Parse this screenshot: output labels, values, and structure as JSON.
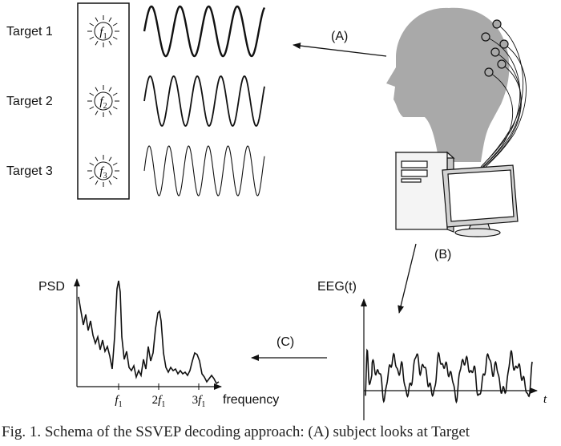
{
  "targets": [
    {
      "label": "Target 1",
      "freq_symbol": "f",
      "freq_sub": "1",
      "cycles": 4.2
    },
    {
      "label": "Target 2",
      "freq_symbol": "f",
      "freq_sub": "2",
      "cycles": 5.1
    },
    {
      "label": "Target 3",
      "freq_symbol": "f",
      "freq_sub": "3",
      "cycles": 6.1
    }
  ],
  "arrows": {
    "a": "(A)",
    "b": "(B)",
    "c": "(C)"
  },
  "psd_plot": {
    "ylabel": "PSD",
    "xlabel": "frequency",
    "ticks": [
      {
        "coef": "",
        "symbol": "f",
        "sub": "1"
      },
      {
        "coef": "2",
        "symbol": "f",
        "sub": "1"
      },
      {
        "coef": "3",
        "symbol": "f",
        "sub": "1"
      }
    ]
  },
  "eeg_plot": {
    "ylabel": "EEG(t)",
    "xlabel": "t"
  },
  "caption": "Fig. 1.   Schema of the SSVEP decoding approach: (A) subject looks at Target"
}
